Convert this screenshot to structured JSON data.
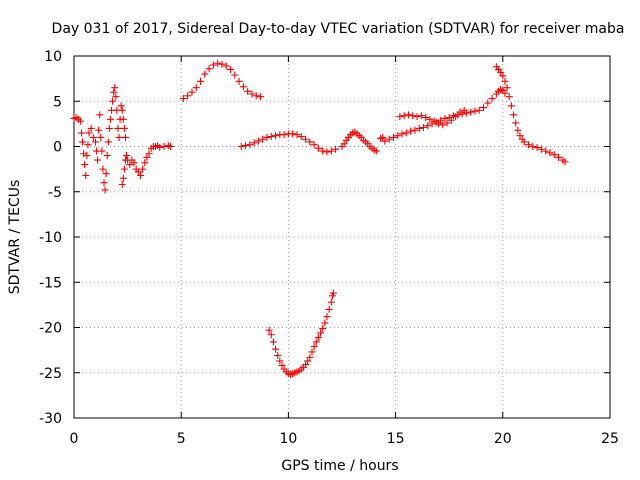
{
  "chart_data": {
    "type": "scatter",
    "title": "Day 031 of 2017, Sidereal Day-to-day VTEC variation (SDTVAR) for receiver maba",
    "xlabel": "GPS time / hours",
    "ylabel": "SDTVAR / TECUs",
    "xlim": [
      0,
      25
    ],
    "ylim": [
      -30,
      10
    ],
    "xticks": [
      0,
      5,
      10,
      15,
      20,
      25
    ],
    "yticks": [
      10,
      5,
      0,
      -5,
      -10,
      -15,
      -20,
      -25,
      -30
    ],
    "grid": true,
    "marker": "+",
    "color": "#ff0000",
    "series": [
      {
        "name": "seg1",
        "points": [
          [
            0.0,
            3.1
          ],
          [
            0.1,
            3.2
          ],
          [
            0.2,
            3.0
          ],
          [
            0.3,
            2.8
          ],
          [
            0.35,
            1.5
          ],
          [
            0.4,
            0.5
          ],
          [
            0.45,
            -0.8
          ],
          [
            0.5,
            -2.0
          ],
          [
            0.55,
            -3.2
          ],
          [
            0.6,
            -1.0
          ],
          [
            0.65,
            0.2
          ],
          [
            0.7,
            1.5
          ],
          [
            0.8,
            2.0
          ],
          [
            0.9,
            1.0
          ],
          [
            1.0,
            0.5
          ],
          [
            1.05,
            -0.5
          ],
          [
            1.1,
            -1.5
          ],
          [
            1.15,
            1.8
          ],
          [
            1.2,
            3.5
          ],
          [
            1.25,
            1.0
          ],
          [
            1.3,
            -0.5
          ],
          [
            1.35,
            -2.5
          ],
          [
            1.4,
            -4.0
          ],
          [
            1.45,
            -4.8
          ],
          [
            1.5,
            -3.0
          ],
          [
            1.55,
            -1.0
          ],
          [
            1.6,
            0.5
          ],
          [
            1.65,
            2.0
          ],
          [
            1.7,
            3.0
          ],
          [
            1.75,
            4.0
          ],
          [
            1.8,
            5.0
          ],
          [
            1.85,
            6.0
          ],
          [
            1.9,
            6.5
          ],
          [
            1.95,
            5.5
          ],
          [
            2.0,
            4.0
          ],
          [
            2.05,
            2.0
          ],
          [
            2.1,
            1.0
          ],
          [
            2.15,
            3.0
          ],
          [
            2.2,
            4.5
          ],
          [
            2.25,
            4.0
          ],
          [
            2.3,
            3.0
          ],
          [
            2.35,
            2.0
          ],
          [
            2.4,
            1.0
          ]
        ]
      },
      {
        "name": "seg2",
        "points": [
          [
            2.25,
            -4.2
          ],
          [
            2.3,
            -3.5
          ],
          [
            2.35,
            -2.5
          ],
          [
            2.4,
            -1.5
          ],
          [
            2.45,
            -1.0
          ],
          [
            2.5,
            -1.5
          ],
          [
            2.6,
            -2.0
          ],
          [
            2.7,
            -1.5
          ],
          [
            2.8,
            -1.8
          ],
          [
            2.9,
            -2.5
          ],
          [
            3.0,
            -2.8
          ],
          [
            3.1,
            -3.2
          ],
          [
            3.2,
            -2.5
          ],
          [
            3.3,
            -1.8
          ],
          [
            3.4,
            -1.2
          ],
          [
            3.5,
            -0.8
          ],
          [
            3.6,
            -0.2
          ],
          [
            3.7,
            0.0
          ],
          [
            3.8,
            0.0
          ],
          [
            3.9,
            0.1
          ],
          [
            4.0,
            -0.1
          ],
          [
            4.2,
            0.0
          ],
          [
            4.4,
            0.1
          ],
          [
            4.5,
            0.0
          ]
        ]
      },
      {
        "name": "seg3",
        "points": [
          [
            5.1,
            5.3
          ],
          [
            5.3,
            5.6
          ],
          [
            5.5,
            6.0
          ],
          [
            5.7,
            6.5
          ],
          [
            5.9,
            7.2
          ],
          [
            6.1,
            8.0
          ],
          [
            6.3,
            8.6
          ],
          [
            6.5,
            9.0
          ],
          [
            6.7,
            9.2
          ],
          [
            6.9,
            9.1
          ],
          [
            7.1,
            8.9
          ],
          [
            7.3,
            8.5
          ],
          [
            7.5,
            7.9
          ],
          [
            7.7,
            7.2
          ],
          [
            7.9,
            6.6
          ],
          [
            8.1,
            6.1
          ],
          [
            8.3,
            5.8
          ],
          [
            8.5,
            5.6
          ],
          [
            8.7,
            5.5
          ]
        ]
      },
      {
        "name": "seg4",
        "points": [
          [
            7.8,
            0.0
          ],
          [
            8.0,
            0.1
          ],
          [
            8.2,
            0.2
          ],
          [
            8.4,
            0.4
          ],
          [
            8.6,
            0.6
          ],
          [
            8.8,
            0.8
          ],
          [
            9.0,
            1.0
          ],
          [
            9.2,
            1.1
          ],
          [
            9.4,
            1.2
          ],
          [
            9.6,
            1.3
          ],
          [
            9.8,
            1.3
          ],
          [
            10.0,
            1.4
          ],
          [
            10.2,
            1.4
          ],
          [
            10.4,
            1.3
          ],
          [
            10.6,
            1.1
          ],
          [
            10.8,
            0.8
          ],
          [
            11.0,
            0.5
          ],
          [
            11.2,
            0.2
          ],
          [
            11.4,
            -0.2
          ],
          [
            11.6,
            -0.5
          ],
          [
            11.8,
            -0.6
          ],
          [
            12.0,
            -0.5
          ],
          [
            12.2,
            -0.3
          ]
        ]
      },
      {
        "name": "seg5",
        "points": [
          [
            9.1,
            -20.3
          ],
          [
            9.2,
            -20.8
          ],
          [
            9.3,
            -21.6
          ],
          [
            9.4,
            -22.4
          ],
          [
            9.5,
            -23.1
          ],
          [
            9.6,
            -23.7
          ],
          [
            9.7,
            -24.2
          ],
          [
            9.8,
            -24.6
          ],
          [
            9.9,
            -24.9
          ],
          [
            10.0,
            -25.1
          ],
          [
            10.1,
            -25.2
          ],
          [
            10.2,
            -25.1
          ],
          [
            10.3,
            -25.0
          ],
          [
            10.4,
            -24.9
          ],
          [
            10.5,
            -24.8
          ],
          [
            10.6,
            -24.6
          ],
          [
            10.7,
            -24.4
          ],
          [
            10.8,
            -24.1
          ],
          [
            10.9,
            -23.7
          ],
          [
            11.0,
            -23.3
          ],
          [
            11.1,
            -22.7
          ],
          [
            11.2,
            -22.1
          ],
          [
            11.3,
            -21.6
          ],
          [
            11.4,
            -21.1
          ],
          [
            11.5,
            -20.6
          ],
          [
            11.6,
            -20.1
          ],
          [
            11.7,
            -19.5
          ],
          [
            11.8,
            -18.8
          ],
          [
            11.9,
            -18.0
          ],
          [
            12.0,
            -17.2
          ],
          [
            12.05,
            -16.5
          ],
          [
            12.1,
            -16.2
          ]
        ]
      },
      {
        "name": "seg6",
        "points": [
          [
            12.5,
            0.0
          ],
          [
            12.6,
            0.3
          ],
          [
            12.7,
            0.7
          ],
          [
            12.8,
            1.0
          ],
          [
            12.9,
            1.3
          ],
          [
            13.0,
            1.5
          ],
          [
            13.1,
            1.6
          ],
          [
            13.2,
            1.4
          ],
          [
            13.3,
            1.2
          ],
          [
            13.4,
            1.0
          ],
          [
            13.5,
            0.7
          ],
          [
            13.6,
            0.5
          ],
          [
            13.7,
            0.3
          ],
          [
            13.8,
            0.0
          ],
          [
            13.9,
            -0.2
          ],
          [
            14.0,
            -0.4
          ],
          [
            14.1,
            -0.5
          ],
          [
            14.3,
            0.9
          ],
          [
            14.4,
            1.0
          ]
        ]
      },
      {
        "name": "seg7",
        "points": [
          [
            14.5,
            0.6
          ],
          [
            14.7,
            0.8
          ],
          [
            14.9,
            1.0
          ],
          [
            15.1,
            1.2
          ],
          [
            15.3,
            1.4
          ],
          [
            15.5,
            1.5
          ],
          [
            15.7,
            1.7
          ],
          [
            15.9,
            1.8
          ],
          [
            16.1,
            2.0
          ],
          [
            16.3,
            2.1
          ],
          [
            16.5,
            2.3
          ],
          [
            16.7,
            2.5
          ],
          [
            16.9,
            2.7
          ],
          [
            17.1,
            2.9
          ],
          [
            17.3,
            3.1
          ],
          [
            17.5,
            3.2
          ],
          [
            17.7,
            3.4
          ],
          [
            17.9,
            3.5
          ],
          [
            18.1,
            3.6
          ],
          [
            18.3,
            3.7
          ],
          [
            18.5,
            3.8
          ],
          [
            18.7,
            3.9
          ],
          [
            18.9,
            4.0
          ],
          [
            19.1,
            4.3
          ],
          [
            19.3,
            4.8
          ],
          [
            19.5,
            5.3
          ],
          [
            19.7,
            5.8
          ],
          [
            19.8,
            6.1
          ],
          [
            19.9,
            6.3
          ],
          [
            20.0,
            6.2
          ],
          [
            20.1,
            5.9
          ]
        ]
      },
      {
        "name": "seg8",
        "points": [
          [
            15.2,
            3.3
          ],
          [
            15.4,
            3.4
          ],
          [
            15.6,
            3.5
          ],
          [
            15.8,
            3.4
          ],
          [
            16.0,
            3.3
          ],
          [
            16.2,
            3.4
          ],
          [
            16.4,
            3.2
          ],
          [
            16.6,
            3.0
          ],
          [
            16.8,
            2.8
          ],
          [
            17.0,
            2.5
          ],
          [
            17.2,
            2.4
          ],
          [
            17.4,
            2.6
          ],
          [
            17.6,
            2.9
          ],
          [
            17.8,
            3.3
          ],
          [
            18.0,
            3.8
          ],
          [
            18.2,
            4.0
          ]
        ]
      },
      {
        "name": "seg9",
        "points": [
          [
            19.7,
            8.8
          ],
          [
            19.8,
            8.5
          ],
          [
            19.9,
            8.2
          ],
          [
            20.0,
            7.8
          ],
          [
            20.1,
            7.2
          ],
          [
            20.2,
            6.5
          ],
          [
            20.3,
            5.5
          ],
          [
            20.4,
            4.5
          ],
          [
            20.5,
            3.5
          ],
          [
            20.6,
            2.6
          ],
          [
            20.7,
            1.8
          ],
          [
            20.8,
            1.2
          ],
          [
            20.9,
            0.8
          ],
          [
            21.0,
            0.5
          ],
          [
            21.2,
            0.2
          ],
          [
            21.4,
            0.0
          ],
          [
            21.6,
            -0.1
          ],
          [
            21.8,
            -0.3
          ],
          [
            22.0,
            -0.5
          ],
          [
            22.2,
            -0.7
          ],
          [
            22.4,
            -0.9
          ],
          [
            22.6,
            -1.2
          ],
          [
            22.8,
            -1.5
          ],
          [
            22.9,
            -1.7
          ]
        ]
      }
    ]
  }
}
